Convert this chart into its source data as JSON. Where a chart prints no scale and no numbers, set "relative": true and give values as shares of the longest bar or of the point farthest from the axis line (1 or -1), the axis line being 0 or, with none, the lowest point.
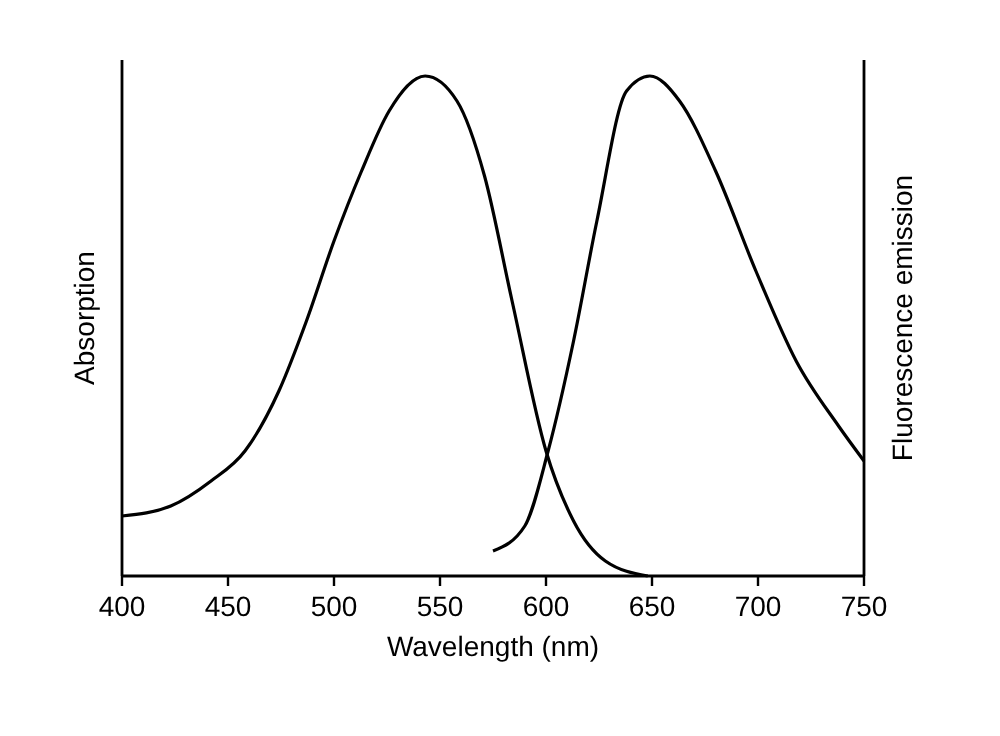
{
  "chart_data": {
    "type": "line",
    "xlabel": "Wavelength (nm)",
    "ylabel": "Absorption",
    "y2label": "Fluorescence emission",
    "relative": true,
    "xlim": [
      400,
      750
    ],
    "xticks": [
      400,
      450,
      500,
      550,
      600,
      650,
      700,
      750
    ],
    "line_style": "solid",
    "series": [
      {
        "color": "#000000",
        "x": [
          400,
          423,
          442,
          458,
          474,
          487,
          500,
          513,
          526,
          543,
          558,
          571,
          584,
          600,
          613,
          628,
          648
        ],
        "values": [
          0.12,
          0.14,
          0.19,
          0.25,
          0.37,
          0.51,
          0.67,
          0.81,
          0.93,
          1,
          0.95,
          0.8,
          0.55,
          0.25,
          0.11,
          0.03,
          0
        ]
      },
      {
        "color": "#000000",
        "x": [
          575,
          590,
          601,
          613,
          624,
          638,
          649,
          663,
          680,
          699,
          718,
          738,
          750
        ],
        "values": [
          0.05,
          0.1,
          0.25,
          0.47,
          0.71,
          0.97,
          1,
          0.95,
          0.81,
          0.61,
          0.43,
          0.3,
          0.23
        ]
      }
    ]
  }
}
